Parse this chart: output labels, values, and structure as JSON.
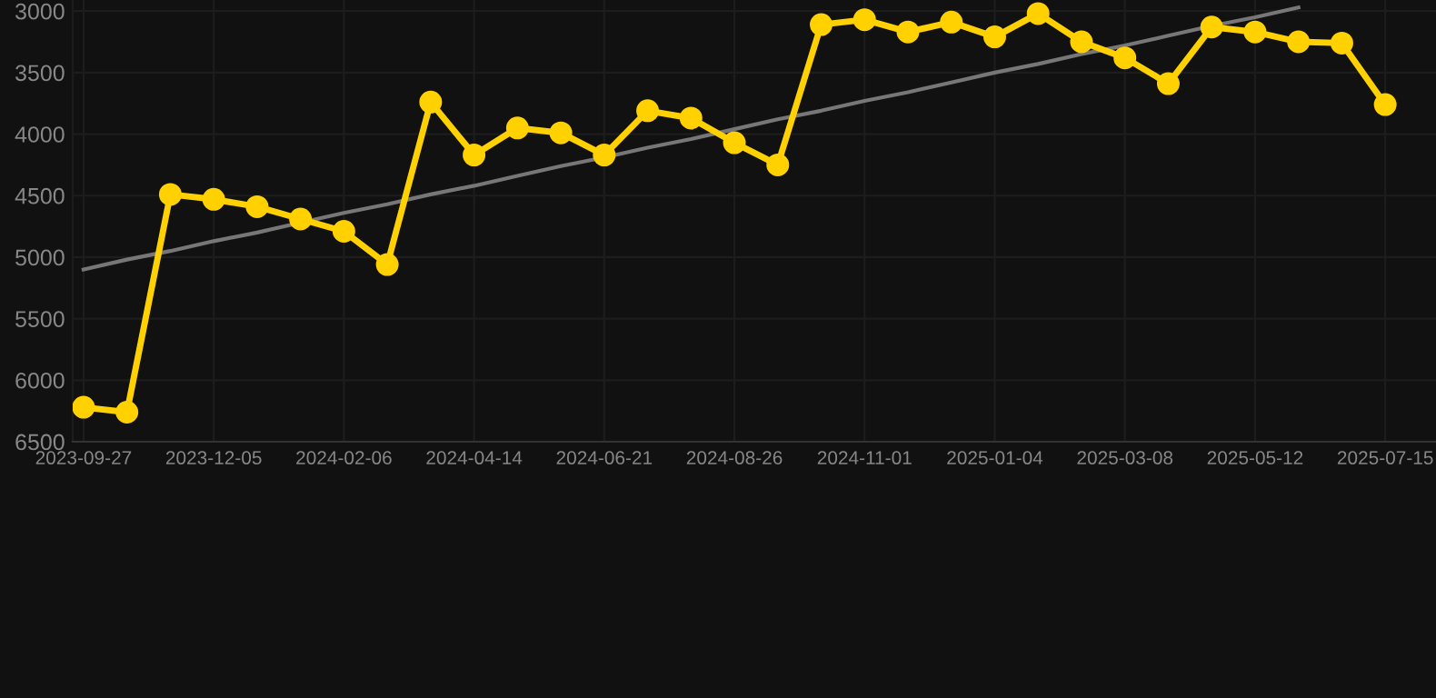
{
  "chart_data": {
    "type": "line",
    "categories": [
      "2023-09-27",
      null,
      null,
      "2023-12-05",
      null,
      null,
      "2024-02-06",
      null,
      null,
      "2024-04-14",
      null,
      null,
      "2024-06-21",
      null,
      null,
      "2024-08-26",
      null,
      null,
      "2024-11-01",
      null,
      null,
      "2025-01-04",
      null,
      null,
      "2025-03-08",
      null,
      null,
      "2025-05-12",
      null,
      null,
      "2025-07-15"
    ],
    "series": [
      {
        "color": "#ffd100",
        "marker": "circle",
        "values": [
          6220,
          6260,
          4490,
          4530,
          4590,
          4690,
          4790,
          5060,
          3740,
          4170,
          3950,
          3990,
          4170,
          3810,
          3870,
          4070,
          4250,
          3110,
          3070,
          3170,
          3090,
          3210,
          3020,
          3250,
          3380,
          3590,
          3130,
          3170,
          3250,
          3260,
          3760
        ]
      },
      {
        "color": "#777777",
        "marker": "none",
        "values": [
          5100,
          5020,
          4950,
          4870,
          4800,
          4720,
          4640,
          4570,
          4490,
          4420,
          4340,
          4260,
          4190,
          4110,
          4040,
          3960,
          3880,
          3810,
          3730,
          3660,
          3580,
          3500,
          3430,
          3350,
          3280,
          3200,
          3120,
          3050,
          2970,
          null,
          null
        ]
      }
    ],
    "ylim": [
      6500,
      2910
    ],
    "yticks": [
      3000,
      3500,
      4000,
      4500,
      5000,
      5500,
      6000,
      6500
    ],
    "grid": true,
    "line_style": "solid"
  }
}
